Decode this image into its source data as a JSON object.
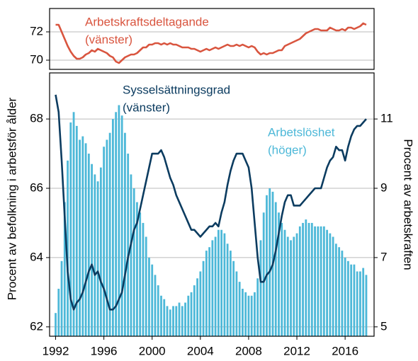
{
  "chart_data": {
    "type": "combo",
    "x": [
      1992,
      1992.25,
      1992.5,
      1992.75,
      1993,
      1993.25,
      1993.5,
      1993.75,
      1994,
      1994.25,
      1994.5,
      1994.75,
      1995,
      1995.25,
      1995.5,
      1995.75,
      1996,
      1996.25,
      1996.5,
      1996.75,
      1997,
      1997.25,
      1997.5,
      1997.75,
      1998,
      1998.25,
      1998.5,
      1998.75,
      1999,
      1999.25,
      1999.5,
      1999.75,
      2000,
      2000.25,
      2000.5,
      2000.75,
      2001,
      2001.25,
      2001.5,
      2001.75,
      2002,
      2002.25,
      2002.5,
      2002.75,
      2003,
      2003.25,
      2003.5,
      2003.75,
      2004,
      2004.25,
      2004.5,
      2004.75,
      2005,
      2005.25,
      2005.5,
      2005.75,
      2006,
      2006.25,
      2006.5,
      2006.75,
      2007,
      2007.25,
      2007.5,
      2007.75,
      2008,
      2008.25,
      2008.5,
      2008.75,
      2009,
      2009.25,
      2009.5,
      2009.75,
      2010,
      2010.25,
      2010.5,
      2010.75,
      2011,
      2011.25,
      2011.5,
      2011.75,
      2012,
      2012.25,
      2012.5,
      2012.75,
      2013,
      2013.25,
      2013.5,
      2013.75,
      2014,
      2014.25,
      2014.5,
      2014.75,
      2015,
      2015.25,
      2015.5,
      2015.75,
      2016,
      2016.25,
      2016.5,
      2016.75,
      2017,
      2017.25,
      2017.5,
      2017.75
    ],
    "xlim": [
      1991.5,
      2018.4
    ],
    "xticks": [
      1992,
      1996,
      2000,
      2004,
      2008,
      2012,
      2016
    ],
    "grid": true,
    "panels": [
      {
        "ylim": [
          69.35,
          73.65
        ],
        "yticks": [
          70,
          72
        ],
        "series": [
          {
            "name": "Arbetskraftsdeltagande",
            "side_label": "(vänster)",
            "type": "line",
            "axis": "y",
            "color": "#d9553f",
            "values": [
              72.5,
              72.5,
              72.0,
              71.5,
              71.0,
              70.6,
              70.3,
              70.1,
              70.1,
              70.2,
              70.4,
              70.5,
              70.7,
              70.6,
              70.8,
              70.7,
              70.6,
              70.5,
              70.3,
              70.2,
              69.9,
              69.8,
              70.0,
              70.2,
              70.3,
              70.4,
              70.4,
              70.5,
              70.7,
              70.9,
              70.9,
              71.1,
              71.1,
              71.2,
              71.2,
              71.1,
              71.2,
              71.1,
              71.2,
              71.1,
              71.1,
              71.0,
              70.9,
              70.9,
              70.9,
              70.8,
              70.8,
              70.7,
              70.6,
              70.7,
              70.8,
              70.7,
              70.8,
              70.9,
              70.8,
              70.9,
              71.0,
              71.1,
              71.0,
              71.0,
              71.1,
              71.0,
              71.1,
              71.0,
              70.9,
              71.0,
              70.9,
              70.6,
              70.4,
              70.5,
              70.4,
              70.5,
              70.5,
              70.6,
              70.7,
              70.7,
              71.0,
              71.1,
              71.2,
              71.3,
              71.4,
              71.5,
              71.7,
              71.9,
              72.0,
              72.1,
              72.2,
              72.2,
              72.1,
              72.1,
              72.1,
              72.3,
              72.2,
              72.1,
              72.1,
              72.2,
              72.1,
              72.3,
              72.3,
              72.2,
              72.3,
              72.4,
              72.6,
              72.5
            ]
          }
        ]
      },
      {
        "ylim": [
          61.73,
          69.33
        ],
        "yticks": [
          62,
          64,
          66,
          68
        ],
        "y2lim": [
          4.73,
          12.33
        ],
        "y2ticks": [
          5,
          7,
          9,
          11
        ],
        "y_label": "Procent av befolkning i arbetsför ålder",
        "y2_label": "Procent av arbetskraften",
        "series": [
          {
            "name": "Arbetslöshet",
            "side_label": "(höger)",
            "type": "bar",
            "axis": "y2",
            "color": "#4db8d8",
            "values": [
              5.4,
              6.1,
              6.9,
              8.6,
              9.8,
              10.9,
              11.2,
              10.8,
              10.4,
              10.5,
              10.3,
              10.0,
              9.7,
              9.4,
              9.2,
              9.6,
              10.2,
              10.4,
              10.6,
              11.0,
              11.2,
              11.4,
              11.1,
              10.6,
              10.0,
              9.4,
              9.0,
              8.6,
              8.3,
              8.0,
              7.6,
              7.0,
              6.8,
              6.5,
              6.2,
              5.9,
              5.8,
              5.6,
              5.5,
              5.6,
              5.6,
              5.7,
              5.6,
              5.7,
              5.9,
              6.0,
              6.2,
              6.4,
              6.6,
              6.9,
              7.2,
              7.3,
              7.5,
              7.6,
              7.8,
              7.8,
              7.7,
              7.4,
              7.2,
              6.9,
              6.6,
              6.3,
              6.1,
              6.0,
              5.9,
              5.9,
              6.0,
              6.4,
              7.5,
              8.3,
              8.8,
              9.0,
              8.9,
              8.6,
              8.3,
              8.0,
              7.8,
              7.6,
              7.5,
              7.6,
              7.7,
              7.9,
              8.0,
              8.1,
              8.0,
              8.0,
              7.9,
              7.9,
              7.9,
              7.9,
              7.8,
              7.7,
              7.6,
              7.4,
              7.3,
              7.2,
              7.0,
              6.9,
              6.8,
              6.8,
              6.6,
              6.6,
              6.7,
              6.5
            ]
          },
          {
            "name": "Sysselsättningsgrad",
            "side_label": "(vänster)",
            "type": "line",
            "axis": "y",
            "color": "#0c3c60",
            "values": [
              68.7,
              68.2,
              66.8,
              65.2,
              63.6,
              62.8,
              62.5,
              62.7,
              62.8,
              63.0,
              63.3,
              63.6,
              63.8,
              63.5,
              63.6,
              63.3,
              63.1,
              62.8,
              62.5,
              62.5,
              62.6,
              62.8,
              63.0,
              63.5,
              64.0,
              64.4,
              64.8,
              65.0,
              65.4,
              65.8,
              66.2,
              66.6,
              67.0,
              67.0,
              67.0,
              67.1,
              66.9,
              66.6,
              66.3,
              66.1,
              65.8,
              65.6,
              65.4,
              65.2,
              65.0,
              64.8,
              64.8,
              64.7,
              64.6,
              64.7,
              64.8,
              64.9,
              64.9,
              65.0,
              64.9,
              65.3,
              65.6,
              66.1,
              66.5,
              66.8,
              67.0,
              67.0,
              67.0,
              66.8,
              66.6,
              66.0,
              65.0,
              64.0,
              63.3,
              63.3,
              63.5,
              63.6,
              63.8,
              64.2,
              64.7,
              65.2,
              65.6,
              65.8,
              65.8,
              65.5,
              65.5,
              65.5,
              65.6,
              65.7,
              65.8,
              65.9,
              66.0,
              66.0,
              66.0,
              66.3,
              66.6,
              66.8,
              66.9,
              67.2,
              67.1,
              67.1,
              66.8,
              67.2,
              67.5,
              67.7,
              67.8,
              67.8,
              67.9,
              68.0
            ]
          }
        ]
      }
    ]
  }
}
